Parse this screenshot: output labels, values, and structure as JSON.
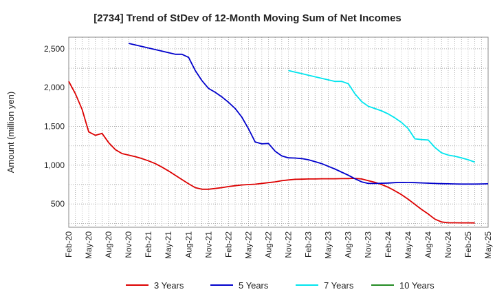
{
  "chart_data": {
    "type": "line",
    "title": "[2734]  Trend of StDev of 12-Month Moving Sum of Net Incomes",
    "xlabel": "",
    "ylabel": "Amount (million yen)",
    "x_start": "Feb-20",
    "x_ticks": [
      "Feb-20",
      "May-20",
      "Aug-20",
      "Nov-20",
      "Feb-21",
      "May-21",
      "Aug-21",
      "Nov-21",
      "Feb-22",
      "May-22",
      "Aug-22",
      "Nov-22",
      "Feb-23",
      "May-23",
      "Aug-23",
      "Nov-23",
      "Feb-24",
      "May-24",
      "Aug-24",
      "Nov-24",
      "Feb-25",
      "May-25"
    ],
    "y_ticks": [
      500,
      1000,
      1500,
      2000,
      2500
    ],
    "y_tick_labels": [
      "500",
      "1,000",
      "1,500",
      "2,000",
      "2,500"
    ],
    "ylim": [
      200,
      2650
    ],
    "grid": true,
    "legend_position": "bottom",
    "series": [
      {
        "name": "3 Years",
        "color": "#dd0000",
        "start": "Feb-20",
        "values": [
          2080,
          1920,
          1720,
          1430,
          1385,
          1410,
          1290,
          1200,
          1150,
          1130,
          1110,
          1085,
          1055,
          1020,
          975,
          925,
          870,
          815,
          760,
          710,
          690,
          690,
          700,
          710,
          725,
          735,
          745,
          750,
          755,
          765,
          775,
          785,
          800,
          810,
          818,
          820,
          822,
          822,
          825,
          825,
          825,
          827,
          828,
          830,
          822,
          800,
          780,
          750,
          715,
          670,
          620,
          560,
          495,
          430,
          370,
          305,
          268,
          258,
          258,
          257,
          257,
          256
        ]
      },
      {
        "name": "5 Years",
        "color": "#0000cc",
        "start": "Nov-20",
        "values": [
          2570,
          2550,
          2530,
          2510,
          2490,
          2470,
          2450,
          2430,
          2430,
          2390,
          2220,
          2090,
          1990,
          1940,
          1880,
          1810,
          1730,
          1620,
          1470,
          1300,
          1275,
          1280,
          1180,
          1120,
          1095,
          1092,
          1085,
          1070,
          1045,
          1020,
          985,
          950,
          910,
          870,
          825,
          785,
          765,
          765,
          767,
          770,
          775,
          778,
          777,
          775,
          772,
          768,
          765,
          762,
          760,
          758,
          757,
          757,
          757,
          758,
          760
        ]
      },
      {
        "name": "7 Years",
        "color": "#00e5ee",
        "start": "Nov-22",
        "values": [
          2220,
          2200,
          2180,
          2160,
          2140,
          2120,
          2100,
          2080,
          2080,
          2050,
          1920,
          1820,
          1760,
          1730,
          1700,
          1660,
          1610,
          1550,
          1470,
          1340,
          1330,
          1325,
          1230,
          1160,
          1130,
          1115,
          1095,
          1070,
          1040
        ]
      },
      {
        "name": "10 Years",
        "color": "#228b22",
        "start": "",
        "values": []
      }
    ]
  }
}
